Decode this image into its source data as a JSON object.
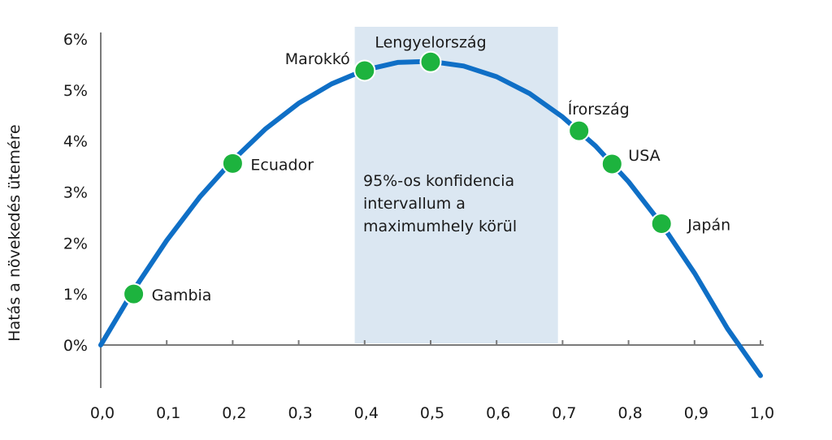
{
  "chart_data": {
    "type": "line",
    "ylabel": "Hatás a növekedés ütemére",
    "xlabel": "",
    "xlim": [
      0.0,
      1.0
    ],
    "ylim": [
      -0.6,
      6.0
    ],
    "x_ticks": [
      "0,0",
      "0,1",
      "0,2",
      "0,3",
      "0,4",
      "0,5",
      "0,6",
      "0,7",
      "0,8",
      "0,9",
      "1,0"
    ],
    "y_ticks": [
      "0%",
      "1%",
      "2%",
      "3%",
      "4%",
      "5%",
      "6%"
    ],
    "curve": {
      "x": [
        0.0,
        0.05,
        0.1,
        0.15,
        0.2,
        0.25,
        0.3,
        0.35,
        0.4,
        0.45,
        0.5,
        0.55,
        0.6,
        0.65,
        0.7,
        0.75,
        0.8,
        0.85,
        0.9,
        0.95,
        1.0
      ],
      "y": [
        0.0,
        1.08,
        2.05,
        2.9,
        3.62,
        4.24,
        4.74,
        5.12,
        5.39,
        5.54,
        5.56,
        5.47,
        5.26,
        4.93,
        4.47,
        3.9,
        3.2,
        2.37,
        1.41,
        0.32,
        -0.6
      ]
    },
    "points": [
      {
        "label": "Gambia",
        "x": 0.05,
        "y": 1.0
      },
      {
        "label": "Ecuador",
        "x": 0.2,
        "y": 3.56
      },
      {
        "label": "Marokkó",
        "x": 0.4,
        "y": 5.38
      },
      {
        "label": "Lengyelország",
        "x": 0.5,
        "y": 5.55
      },
      {
        "label": "Írország",
        "x": 0.725,
        "y": 4.2
      },
      {
        "label": "USA",
        "x": 0.775,
        "y": 3.55
      },
      {
        "label": "Japán",
        "x": 0.85,
        "y": 2.38
      }
    ],
    "band": {
      "x_range": [
        0.385,
        0.693
      ],
      "text": [
        "95%-os konfidencia",
        "intervallum a",
        "maximumhely körül"
      ]
    },
    "colors": {
      "curve": "#0f6fc6",
      "point": "#1db33e",
      "band": "#dbe7f2",
      "axis": "#7a7a7a"
    }
  }
}
